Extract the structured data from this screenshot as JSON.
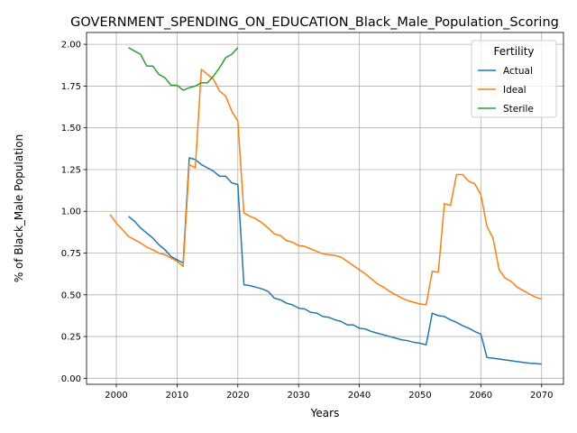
{
  "chart_data": {
    "type": "line",
    "title": "GOVERNMENT_SPENDING_ON_EDUCATION_Black_Male_Population_Scoring",
    "xlabel": "Years",
    "ylabel": "% of Black_Male Population",
    "xlim": [
      1995.1,
      2073.6
    ],
    "ylim": [
      -0.036,
      2.071
    ],
    "xticks": [
      2000,
      2010,
      2020,
      2030,
      2040,
      2050,
      2060,
      2070
    ],
    "xtick_labels": [
      "2000",
      "2010",
      "2020",
      "2030",
      "2040",
      "2050",
      "2060",
      "2070"
    ],
    "yticks": [
      0.0,
      0.25,
      0.5,
      0.75,
      1.0,
      1.25,
      1.5,
      1.75,
      2.0
    ],
    "ytick_labels": [
      "0.00",
      "0.25",
      "0.50",
      "0.75",
      "1.00",
      "1.25",
      "1.50",
      "1.75",
      "2.00"
    ],
    "grid": true,
    "legend": {
      "title": "Fertility",
      "position": "top-right"
    },
    "series": [
      {
        "name": "Actual",
        "color": "#1f77b4",
        "x": [
          2002,
          2003,
          2004,
          2005,
          2006,
          2007,
          2008,
          2009,
          2010,
          2011,
          2012,
          2013,
          2014,
          2015,
          2016,
          2017,
          2018,
          2019,
          2020,
          2021,
          2022,
          2023,
          2024,
          2025,
          2026,
          2027,
          2028,
          2029,
          2030,
          2031,
          2032,
          2033,
          2034,
          2035,
          2036,
          2037,
          2038,
          2039,
          2040,
          2041,
          2042,
          2043,
          2044,
          2045,
          2046,
          2047,
          2048,
          2049,
          2050,
          2051,
          2052,
          2053,
          2054,
          2055,
          2056,
          2057,
          2058,
          2059,
          2060,
          2061,
          2062,
          2063,
          2064,
          2065,
          2066,
          2067,
          2068,
          2069,
          2070
        ],
        "values": [
          0.97,
          0.94,
          0.9,
          0.87,
          0.84,
          0.8,
          0.77,
          0.73,
          0.71,
          0.69,
          1.32,
          1.31,
          1.28,
          1.26,
          1.24,
          1.21,
          1.21,
          1.17,
          1.16,
          0.56,
          0.555,
          0.545,
          0.535,
          0.52,
          0.48,
          0.47,
          0.45,
          0.44,
          0.42,
          0.415,
          0.395,
          0.39,
          0.37,
          0.365,
          0.35,
          0.34,
          0.32,
          0.32,
          0.3,
          0.295,
          0.28,
          0.27,
          0.26,
          0.25,
          0.24,
          0.23,
          0.225,
          0.215,
          0.21,
          0.2,
          0.39,
          0.375,
          0.37,
          0.35,
          0.335,
          0.315,
          0.3,
          0.28,
          0.265,
          0.125,
          0.12,
          0.115,
          0.11,
          0.105,
          0.1,
          0.095,
          0.09,
          0.088,
          0.085
        ]
      },
      {
        "name": "Ideal",
        "color": "#ff7f0e",
        "x": [
          1999,
          2000,
          2001,
          2002,
          2003,
          2004,
          2005,
          2006,
          2007,
          2008,
          2009,
          2010,
          2011,
          2012,
          2013,
          2014,
          2015,
          2016,
          2017,
          2018,
          2019,
          2020,
          2021,
          2022,
          2023,
          2024,
          2025,
          2026,
          2027,
          2028,
          2029,
          2030,
          2031,
          2032,
          2033,
          2034,
          2035,
          2036,
          2037,
          2038,
          2039,
          2040,
          2041,
          2042,
          2043,
          2044,
          2045,
          2046,
          2047,
          2048,
          2049,
          2050,
          2051,
          2052,
          2053,
          2054,
          2055,
          2056,
          2057,
          2058,
          2059,
          2060,
          2061,
          2062,
          2063,
          2064,
          2065,
          2066,
          2067,
          2068,
          2069,
          2070
        ],
        "values": [
          0.98,
          0.93,
          0.89,
          0.85,
          0.83,
          0.81,
          0.785,
          0.77,
          0.75,
          0.74,
          0.72,
          0.7,
          0.67,
          1.28,
          1.26,
          1.85,
          1.82,
          1.79,
          1.72,
          1.69,
          1.6,
          1.54,
          0.99,
          0.97,
          0.955,
          0.93,
          0.9,
          0.865,
          0.855,
          0.825,
          0.815,
          0.795,
          0.79,
          0.775,
          0.76,
          0.745,
          0.74,
          0.735,
          0.725,
          0.7,
          0.675,
          0.65,
          0.625,
          0.595,
          0.565,
          0.545,
          0.52,
          0.5,
          0.48,
          0.465,
          0.455,
          0.445,
          0.44,
          0.64,
          0.635,
          1.045,
          1.035,
          1.22,
          1.22,
          1.18,
          1.165,
          1.1,
          0.91,
          0.84,
          0.65,
          0.6,
          0.58,
          0.545,
          0.525,
          0.505,
          0.485,
          0.475
        ]
      },
      {
        "name": "Sterile",
        "color": "#2ca02c",
        "x": [
          2002,
          2003,
          2004,
          2005,
          2006,
          2007,
          2008,
          2009,
          2010,
          2011,
          2012,
          2013,
          2014,
          2015,
          2016,
          2017,
          2018,
          2019,
          2020
        ],
        "values": [
          1.98,
          1.96,
          1.94,
          1.87,
          1.87,
          1.82,
          1.8,
          1.755,
          1.755,
          1.725,
          1.74,
          1.75,
          1.77,
          1.77,
          1.81,
          1.86,
          1.92,
          1.94,
          1.98
        ]
      }
    ]
  }
}
